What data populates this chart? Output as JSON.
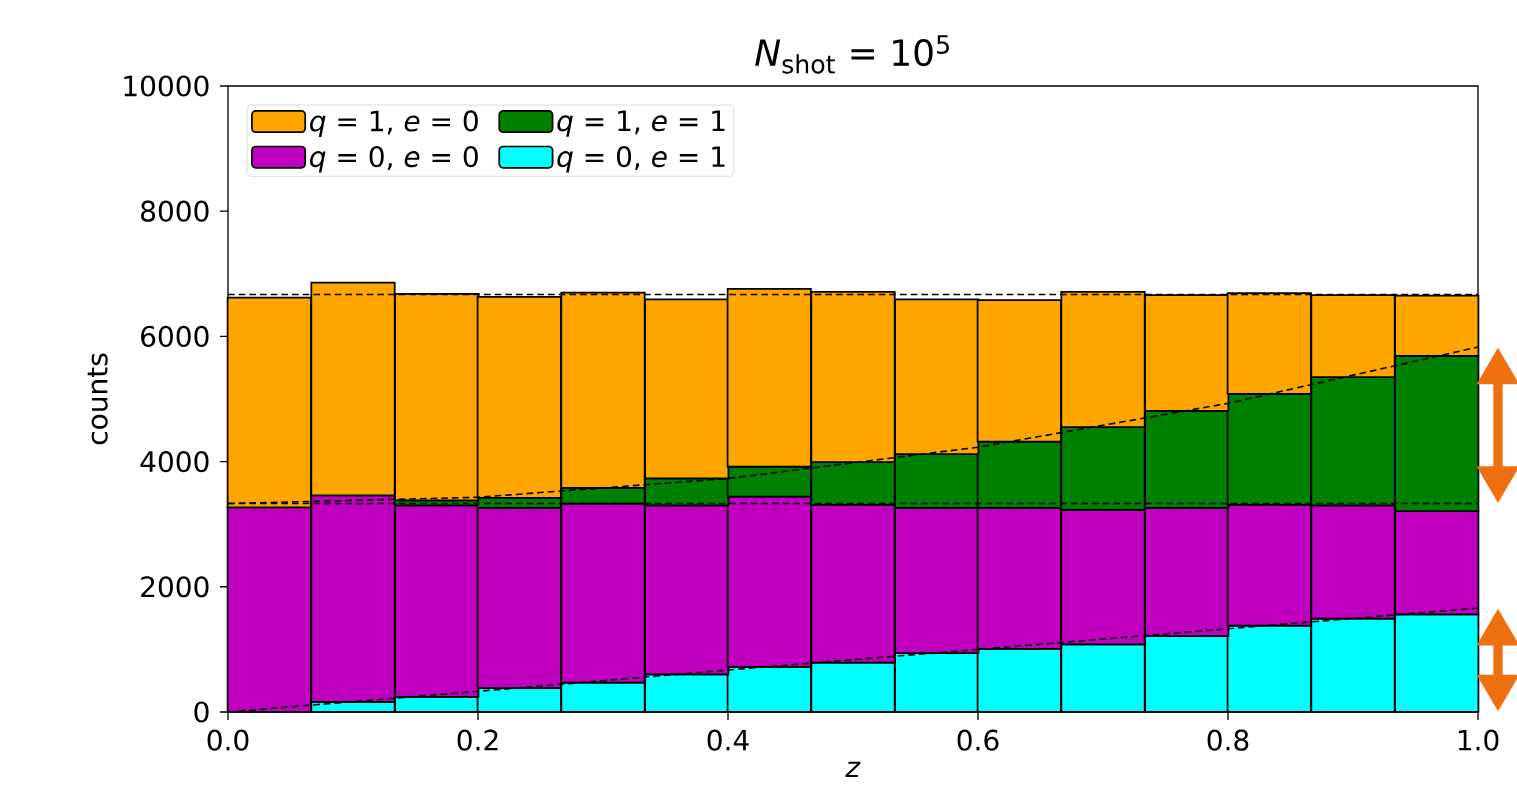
{
  "chart_data": {
    "type": "bar",
    "title": "*N*$_{shot}$ = 10$^{5}$",
    "xlabel": "*z*",
    "ylabel": "counts",
    "x": [
      0.033,
      0.1,
      0.167,
      0.233,
      0.3,
      0.367,
      0.433,
      0.5,
      0.567,
      0.633,
      0.7,
      0.767,
      0.833,
      0.9,
      0.967
    ],
    "stacked": true,
    "series": [
      {
        "name": "*q* = 0, *e* = 1",
        "color": "#00ffff",
        "values": [
          null,
          160,
          240,
          380,
          470,
          600,
          720,
          790,
          940,
          1010,
          1080,
          1210,
          1380,
          1490,
          1560
        ]
      },
      {
        "name": "*q* = 0, *e* = 0",
        "color": "#bf00bf",
        "values": [
          3270,
          3300,
          3060,
          2880,
          2860,
          2700,
          2720,
          2520,
          2320,
          2250,
          2150,
          2050,
          1930,
          1810,
          1650
        ]
      },
      {
        "name": "*q* = 1, *e* = 1",
        "color": "#008000",
        "values": [
          0,
          0,
          80,
          160,
          250,
          430,
          480,
          680,
          860,
          1060,
          1320,
          1550,
          1770,
          2050,
          2480
        ]
      },
      {
        "name": "*q* = 1, *e* = 0",
        "color": "#ffa500",
        "values": [
          3350,
          3400,
          3300,
          3210,
          3120,
          2860,
          2840,
          2720,
          2470,
          2260,
          2160,
          1850,
          1610,
          1310,
          960
        ]
      },
      {
        "type": "line",
        "color": "#000000",
        "line_style": "dashed",
        "x": [
          0,
          0.2,
          0.4,
          0.6,
          0.8,
          1.0
        ],
        "values": [
          0,
          330,
          670,
          1000,
          1330,
          1660
        ]
      },
      {
        "type": "line",
        "color": "#000000",
        "line_style": "dashed",
        "x": [
          0,
          1.0
        ],
        "values": [
          3330,
          3330
        ]
      },
      {
        "type": "line",
        "color": "#000000",
        "line_style": "dashed",
        "x": [
          0,
          0.2,
          0.4,
          0.6,
          0.8,
          1.0
        ],
        "values": [
          3330,
          3430,
          3730,
          4230,
          4930,
          5830
        ]
      },
      {
        "type": "line",
        "color": "#000000",
        "line_style": "dashed",
        "x": [
          0,
          1.0
        ],
        "values": [
          6670,
          6670
        ]
      }
    ],
    "xlim": [
      0,
      1.0
    ],
    "ylim": [
      0,
      10000
    ],
    "xticks": [
      {
        "value": 0,
        "label": "0.0"
      },
      {
        "value": 0.2,
        "label": "0.2"
      },
      {
        "value": 0.4,
        "label": "0.4"
      },
      {
        "value": 0.6,
        "label": "0.6"
      },
      {
        "value": 0.8,
        "label": "0.8"
      },
      {
        "value": 1.0,
        "label": "1.0"
      }
    ],
    "yticks": [
      0,
      2000,
      4000,
      6000,
      8000,
      10000
    ],
    "legend": "top left",
    "grid": false
  }
}
